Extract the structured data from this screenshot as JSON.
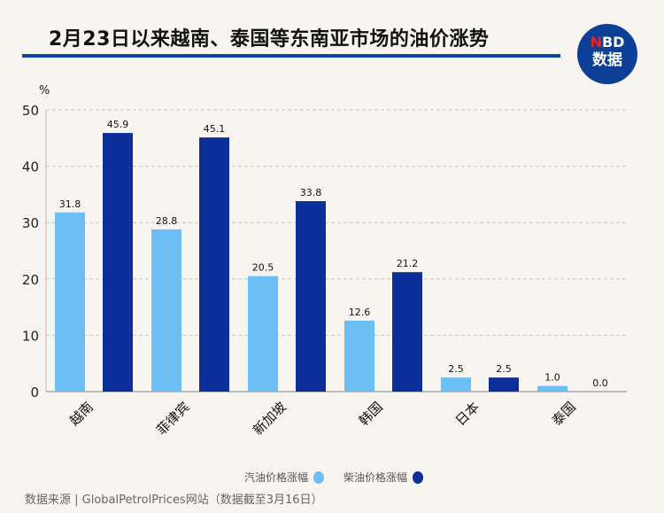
{
  "title": "2月23日以来越南、泰国等东南亚市场的油价涨势",
  "logo": {
    "line1_red": "N",
    "line1": "BD",
    "line2": "数据"
  },
  "source": "数据来源 | GlobalPetrolPrices网站（数据截至3月16日）",
  "colors": {
    "gasoline": "#6bbff5",
    "diesel": "#0c2f9a",
    "accent": "#0b47a0"
  },
  "chart_data": {
    "type": "bar",
    "ylabel": "%",
    "ylim": [
      0,
      50
    ],
    "yticks": [
      0,
      10,
      20,
      30,
      40,
      50
    ],
    "grid": true,
    "legend": "bottom",
    "categories": [
      "越南",
      "菲律宾",
      "新加坡",
      "韩国",
      "日本",
      "泰国"
    ],
    "series": [
      {
        "name": "汽油价格涨幅",
        "values": [
          31.8,
          28.8,
          20.5,
          12.6,
          2.5,
          1.0
        ]
      },
      {
        "name": "柴油价格涨幅",
        "values": [
          45.9,
          45.1,
          33.8,
          21.2,
          2.5,
          0.0
        ]
      }
    ]
  }
}
